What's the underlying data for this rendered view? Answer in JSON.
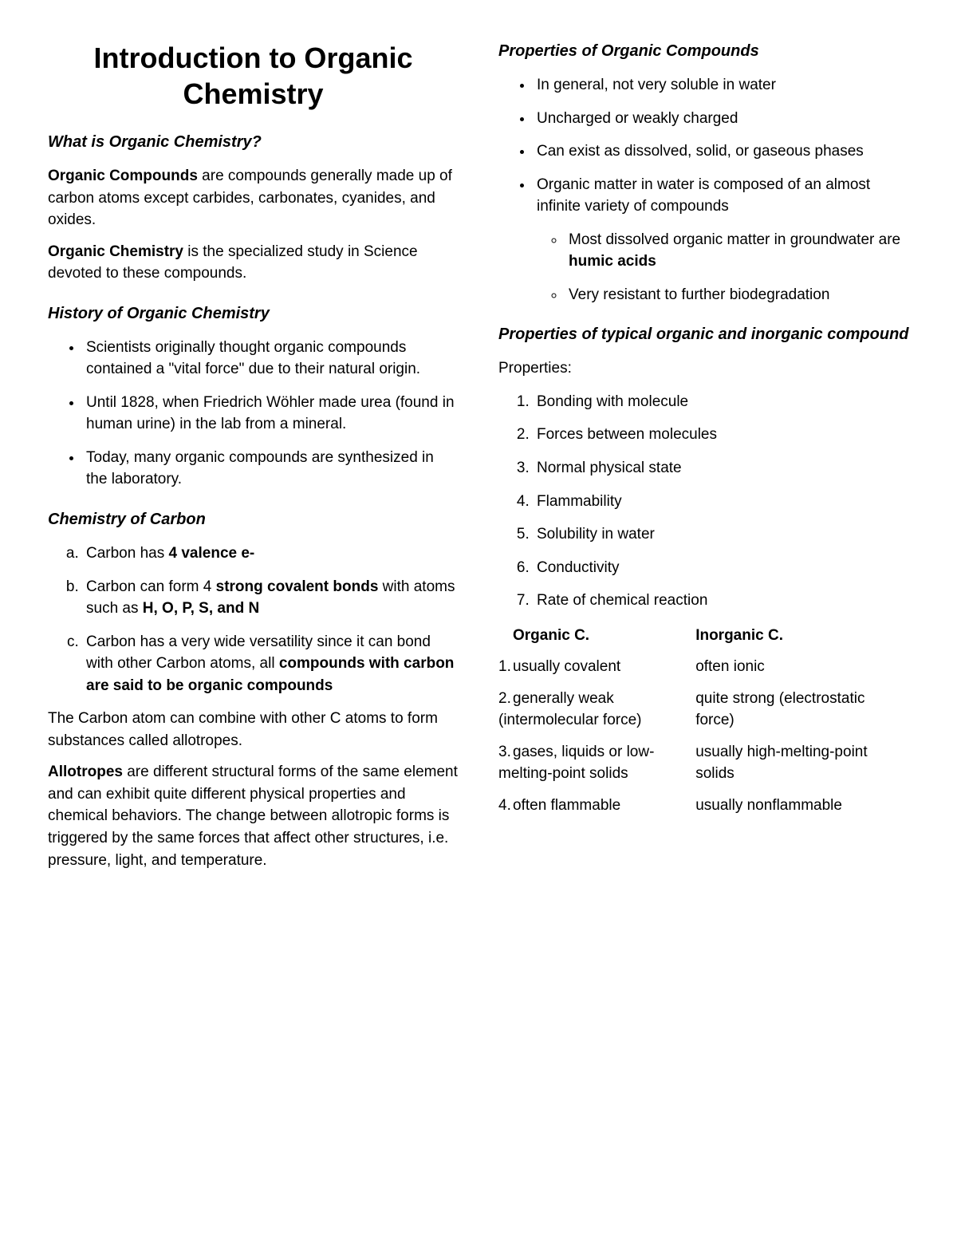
{
  "title": "Introduction to Organic Chemistry",
  "sections": {
    "s1": {
      "heading": "What is Organic Chemistry?",
      "p1_bold": "Organic Compounds",
      "p1_rest": " are compounds generally made up of carbon atoms except carbides, carbonates, cyanides, and oxides.",
      "p2_bold": "Organic Chemistry",
      "p2_rest": " is the specialized study in Science devoted to these compounds."
    },
    "s2": {
      "heading": "History of Organic Chemistry",
      "items": [
        "Scientists originally thought organic compounds contained a \"vital force\" due to their natural origin.",
        "Until 1828, when Friedrich Wöhler made urea (found in human urine) in the lab from a mineral.",
        "Today, many organic compounds are synthesized in the laboratory."
      ]
    },
    "s3": {
      "heading": "Chemistry of Carbon",
      "a_pre": "Carbon has ",
      "a_bold": "4 valence e-",
      "b_pre": "Carbon can form 4 ",
      "b_bold1": "strong covalent bonds",
      "b_mid": " with atoms such as ",
      "b_bold2": "H, O, P, S, and N",
      "c_pre": "Carbon has a very wide versatility since it can bond with other Carbon atoms, all ",
      "c_bold": "compounds with carbon are said to be organic compounds",
      "p_after": "The Carbon atom can combine with other C atoms to form substances called allotropes.",
      "allo_bold": "Allotropes",
      "allo_rest": " are different structural forms of the same element and can exhibit quite different physical properties and chemical behaviors. The change between allotropic forms is triggered by the same forces that affect other structures, i.e. pressure, light, and temperature."
    },
    "s4": {
      "heading": "Properties of Organic Compounds",
      "items": [
        "In general, not very soluble in water",
        "Uncharged or weakly charged",
        "Can exist as dissolved, solid, or gaseous phases"
      ],
      "item4_pre": "Organic matter in water is composed of an almost infinite variety of compounds",
      "sub1_pre": "Most dissolved organic matter in groundwater are ",
      "sub1_bold": "humic acids",
      "sub2": "Very resistant to further biodegradation"
    },
    "s5": {
      "heading": "Properties of typical organic and inorganic compound",
      "lead": "Properties:",
      "props": [
        "Bonding with molecule",
        "Forces between molecules",
        "Normal physical state",
        "Flammability",
        "Solubility in water",
        "Conductivity",
        "Rate of chemical reaction"
      ],
      "table": {
        "h1": "Organic C.",
        "h2": "Inorganic C.",
        "rows": [
          {
            "n": "1.",
            "c1": "usually covalent",
            "c2": "often ionic"
          },
          {
            "n": "2.",
            "c1": "generally weak (intermolecular force)",
            "c2": "quite strong (electrostatic force)"
          },
          {
            "n": "3.",
            "c1": "gases, liquids or low-melting-point solids",
            "c2": "usually high-melting-point solids"
          },
          {
            "n": "4.",
            "c1": "often flammable",
            "c2": "usually nonflammable"
          }
        ]
      }
    }
  }
}
